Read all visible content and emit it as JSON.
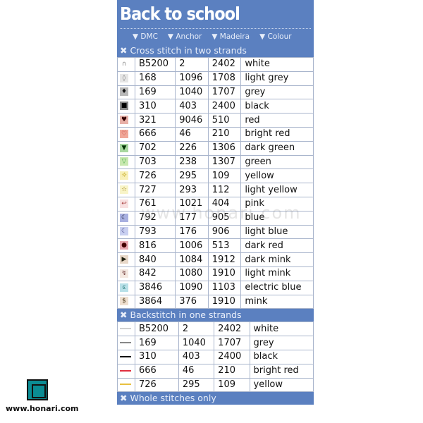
{
  "title": "Back to school",
  "columns": [
    "DMC",
    "Anchor",
    "Madeira",
    "Colour"
  ],
  "sections": [
    {
      "label": "Cross stitch in two strands",
      "rows": [
        {
          "symbol": "∩",
          "bg": "#ffffff",
          "fg": "#888",
          "dmc": "B5200",
          "anchor": "2",
          "madeira": "2402",
          "colour": "white"
        },
        {
          "symbol": "◊",
          "bg": "#e6e6e6",
          "fg": "#777",
          "dmc": "168",
          "anchor": "1096",
          "madeira": "1708",
          "colour": "light grey"
        },
        {
          "symbol": "♦",
          "bg": "#b8b8b8",
          "fg": "#111",
          "dmc": "169",
          "anchor": "1040",
          "madeira": "1707",
          "colour": "grey"
        },
        {
          "symbol": "■",
          "bg": "#888888",
          "fg": "#000",
          "dmc": "310",
          "anchor": "403",
          "madeira": "2400",
          "colour": "black"
        },
        {
          "symbol": "♥",
          "bg": "#e8b0a8",
          "fg": "#300",
          "dmc": "321",
          "anchor": "9046",
          "madeira": "510",
          "colour": "red"
        },
        {
          "symbol": "♡",
          "bg": "#f0a898",
          "fg": "#a00",
          "dmc": "666",
          "anchor": "46",
          "madeira": "210",
          "colour": "bright red"
        },
        {
          "symbol": "▼",
          "bg": "#a8d8a0",
          "fg": "#030",
          "dmc": "702",
          "anchor": "226",
          "madeira": "1306",
          "colour": "dark green"
        },
        {
          "symbol": "▽",
          "bg": "#c8e8b0",
          "fg": "#4a4",
          "dmc": "703",
          "anchor": "238",
          "madeira": "1307",
          "colour": "green"
        },
        {
          "symbol": "☼",
          "bg": "#f8f0b8",
          "fg": "#b90",
          "dmc": "726",
          "anchor": "295",
          "madeira": "109",
          "colour": "yellow"
        },
        {
          "symbol": "☆",
          "bg": "#f8f4c8",
          "fg": "#970",
          "dmc": "727",
          "anchor": "293",
          "madeira": "112",
          "colour": "light yellow"
        },
        {
          "symbol": "↩",
          "bg": "#f8e0e0",
          "fg": "#a44",
          "dmc": "761",
          "anchor": "1021",
          "madeira": "404",
          "colour": "pink"
        },
        {
          "symbol": "☾",
          "bg": "#a8b0e0",
          "fg": "#113",
          "dmc": "792",
          "anchor": "177",
          "madeira": "905",
          "colour": "blue"
        },
        {
          "symbol": "☾",
          "bg": "#c8cff0",
          "fg": "#448",
          "dmc": "793",
          "anchor": "176",
          "madeira": "906",
          "colour": "light blue"
        },
        {
          "symbol": "●",
          "bg": "#e8a8b0",
          "fg": "#400",
          "dmc": "816",
          "anchor": "1006",
          "madeira": "513",
          "colour": "dark red"
        },
        {
          "symbol": "▶",
          "bg": "#e8d8c8",
          "fg": "#221",
          "dmc": "840",
          "anchor": "1084",
          "madeira": "1912",
          "colour": "dark mink"
        },
        {
          "symbol": "↯",
          "bg": "#f4e8e0",
          "fg": "#744",
          "dmc": "842",
          "anchor": "1080",
          "madeira": "1910",
          "colour": "light mink"
        },
        {
          "symbol": "ͼ",
          "bg": "#b8e0e8",
          "fg": "#277",
          "dmc": "3846",
          "anchor": "1090",
          "madeira": "1103",
          "colour": "electric blue"
        },
        {
          "symbol": "$",
          "bg": "#f0e0d0",
          "fg": "#431",
          "dmc": "3864",
          "anchor": "376",
          "madeira": "1910",
          "colour": "mink"
        }
      ]
    },
    {
      "label": "Backstitch in one strands",
      "rows": [
        {
          "line": "#d0d0d0",
          "dmc": "B5200",
          "anchor": "2",
          "madeira": "2402",
          "colour": "white"
        },
        {
          "line": "#888888",
          "dmc": "169",
          "anchor": "1040",
          "madeira": "1707",
          "colour": "grey"
        },
        {
          "line": "#111111",
          "dmc": "310",
          "anchor": "403",
          "madeira": "2400",
          "colour": "black"
        },
        {
          "line": "#e03040",
          "dmc": "666",
          "anchor": "46",
          "madeira": "210",
          "colour": "bright red"
        },
        {
          "line": "#e8c040",
          "dmc": "726",
          "anchor": "295",
          "madeira": "109",
          "colour": "yellow"
        }
      ]
    },
    {
      "label": "Whole stitches only",
      "rows": []
    }
  ],
  "watermark": "www.honari.com",
  "site": "www.honari.com"
}
